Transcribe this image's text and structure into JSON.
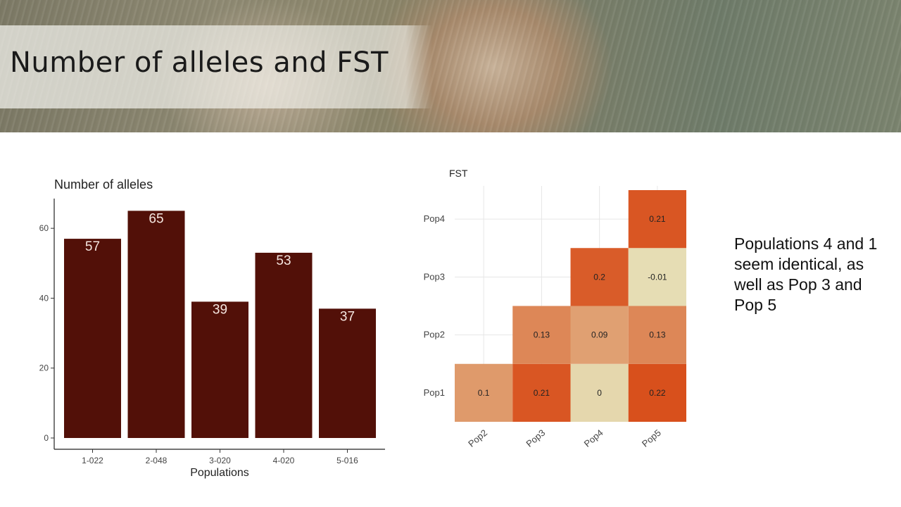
{
  "slide": {
    "title": "Number of alleles and FST",
    "note": "Populations 4 and 1 seem identical, as well as Pop 3 and Pop 5"
  },
  "colors": {
    "bar": "#521008",
    "bar_label": "#f5e6e0",
    "heat_low": "#e6ddb4",
    "heat_high": "#d8501c"
  },
  "chart_data": [
    {
      "type": "bar",
      "title": "Number of alleles",
      "xlabel": "Populations",
      "ylabel": "",
      "categories": [
        "1-022",
        "2-048",
        "3-020",
        "4-020",
        "5-016"
      ],
      "values": [
        57,
        65,
        39,
        53,
        37
      ],
      "yticks": [
        0,
        20,
        40,
        60
      ],
      "ylim": [
        0,
        68.5
      ],
      "grid": false,
      "data_labels": true
    },
    {
      "type": "heatmap",
      "title": "FST",
      "x_categories": [
        "Pop2",
        "Pop3",
        "Pop4",
        "Pop5"
      ],
      "y_categories": [
        "Pop1",
        "Pop2",
        "Pop3",
        "Pop4"
      ],
      "cells": [
        {
          "x": "Pop2",
          "y": "Pop1",
          "value": 0.1,
          "label": "0.1"
        },
        {
          "x": "Pop3",
          "y": "Pop1",
          "value": 0.21,
          "label": "0.21"
        },
        {
          "x": "Pop4",
          "y": "Pop1",
          "value": 0,
          "label": "0"
        },
        {
          "x": "Pop5",
          "y": "Pop1",
          "value": 0.22,
          "label": "0.22"
        },
        {
          "x": "Pop3",
          "y": "Pop2",
          "value": 0.13,
          "label": "0.13"
        },
        {
          "x": "Pop4",
          "y": "Pop2",
          "value": 0.09,
          "label": "0.09"
        },
        {
          "x": "Pop5",
          "y": "Pop2",
          "value": 0.13,
          "label": "0.13"
        },
        {
          "x": "Pop4",
          "y": "Pop3",
          "value": 0.2,
          "label": "0.2"
        },
        {
          "x": "Pop5",
          "y": "Pop3",
          "value": -0.01,
          "label": "-0.01"
        },
        {
          "x": "Pop5",
          "y": "Pop4",
          "value": 0.21,
          "label": "0.21"
        }
      ],
      "value_range": [
        -0.01,
        0.22
      ],
      "grid": true,
      "legend": "none"
    }
  ]
}
